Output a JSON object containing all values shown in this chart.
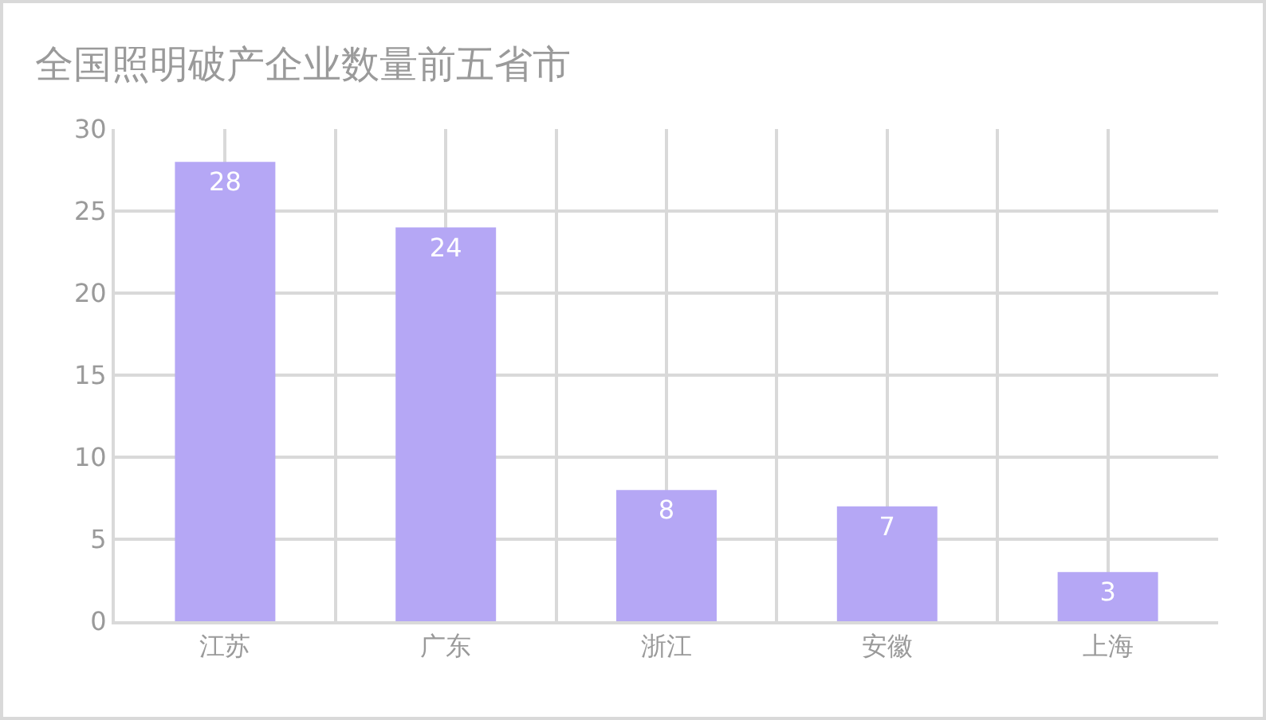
{
  "chart_data": {
    "type": "bar",
    "title": "全国照明破产企业数量前五省市",
    "categories": [
      "江苏",
      "广东",
      "浙江",
      "安徽",
      "上海"
    ],
    "values": [
      28,
      24,
      8,
      7,
      3
    ],
    "color": "#b5a7f5",
    "ylim": [
      0,
      30
    ],
    "yticks": [
      0,
      5,
      10,
      15,
      20,
      25,
      30
    ],
    "grid": true,
    "data_labels": true
  }
}
